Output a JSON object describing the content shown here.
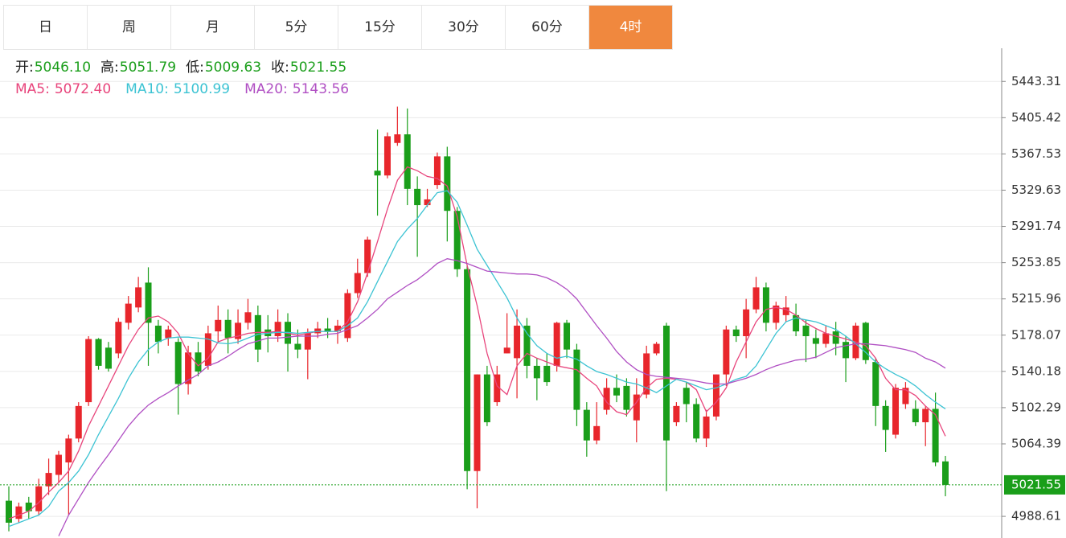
{
  "tabs": [
    "日",
    "周",
    "月",
    "5分",
    "15分",
    "30分",
    "60分",
    "4时"
  ],
  "active_tab": 7,
  "chart_data": {
    "type": "candlestick",
    "up_color": "#e8262c",
    "down_color": "#1a9e1a",
    "ylim": [
      4966,
      5478
    ],
    "yticks": [
      4988.61,
      5064.39,
      5102.29,
      5140.18,
      5178.07,
      5215.96,
      5253.85,
      5291.74,
      5329.63,
      5367.53,
      5405.42,
      5443.31
    ],
    "grid": true,
    "ohlc_header": [
      {
        "label": "开:",
        "value": "5046.10"
      },
      {
        "label": "高:",
        "value": "5051.79"
      },
      {
        "label": "低:",
        "value": "5009.63"
      },
      {
        "label": "收:",
        "value": "5021.55"
      }
    ],
    "open": [
      5005,
      4986,
      5003,
      4994,
      5020,
      5032,
      5045,
      5070,
      5108,
      5174,
      5165,
      5159,
      5191,
      5207,
      5233,
      5188,
      5175,
      5171,
      5127,
      5160,
      5146,
      5182,
      5194,
      5174,
      5191,
      5199,
      5184,
      5177,
      5192,
      5169,
      5163,
      5180,
      5185,
      5182,
      5175,
      5222,
      5243,
      5350,
      5345,
      5379,
      5388,
      5331,
      5314,
      5335,
      5365,
      5308,
      5247,
      5036,
      5137,
      5108,
      5159,
      5154,
      5188,
      5146,
      5146,
      5146,
      5191,
      5163,
      5100,
      5068,
      5100,
      5123,
      5125,
      5089,
      5116,
      5159,
      5188,
      5087,
      5123,
      5106,
      5070,
      5093,
      5137,
      5184,
      5177,
      5205,
      5228,
      5191,
      5199,
      5199,
      5188,
      5175,
      5169,
      5182,
      5171,
      5154,
      5191,
      5150,
      5104,
      5074,
      5106,
      5101,
      5087,
      5101,
      5046.1
    ],
    "high": [
      5020,
      5003,
      5009,
      5028,
      5049,
      5057,
      5074,
      5108,
      5177,
      5175,
      5171,
      5196,
      5219,
      5239,
      5249,
      5194,
      5188,
      5175,
      5167,
      5171,
      5188,
      5209,
      5205,
      5205,
      5216,
      5209,
      5199,
      5205,
      5201,
      5184,
      5185,
      5192,
      5196,
      5194,
      5226,
      5258,
      5281,
      5393,
      5390,
      5417,
      5415,
      5344,
      5331,
      5369,
      5375,
      5312,
      5251,
      5137,
      5146,
      5146,
      5201,
      5205,
      5196,
      5154,
      5159,
      5192,
      5194,
      5169,
      5108,
      5108,
      5133,
      5137,
      5133,
      5133,
      5167,
      5171,
      5191,
      5108,
      5129,
      5112,
      5100,
      5137,
      5188,
      5188,
      5216,
      5239,
      5233,
      5213,
      5219,
      5211,
      5194,
      5184,
      5188,
      5192,
      5177,
      5191,
      5192,
      5154,
      5110,
      5127,
      5129,
      5110,
      5104,
      5118,
      5051.79
    ],
    "low": [
      4973,
      4982,
      4986,
      4990,
      5011,
      5024,
      4990,
      5066,
      5104,
      5142,
      5140,
      5154,
      5184,
      5202,
      5146,
      5159,
      5167,
      5095,
      5116,
      5135,
      5142,
      5171,
      5159,
      5169,
      5184,
      5150,
      5160,
      5171,
      5140,
      5154,
      5132,
      5175,
      5175,
      5169,
      5171,
      5217,
      5239,
      5303,
      5342,
      5376,
      5314,
      5260,
      5312,
      5331,
      5276,
      5239,
      5017,
      4997,
      5083,
      5104,
      5159,
      5112,
      5133,
      5110,
      5125,
      5140,
      5154,
      5083,
      5051,
      5064,
      5095,
      5108,
      5093,
      5066,
      5112,
      5157,
      5015,
      5083,
      5087,
      5066,
      5061,
      5089,
      5125,
      5171,
      5154,
      5201,
      5182,
      5184,
      5192,
      5177,
      5150,
      5154,
      5165,
      5157,
      5129,
      5152,
      5148,
      5083,
      5056,
      5070,
      5101,
      5083,
      5062,
      5041,
      5009.63
    ],
    "close": [
      4982,
      4999,
      4994,
      5020,
      5034,
      5053,
      5070,
      5104,
      5174,
      5146,
      5143,
      5192,
      5211,
      5228,
      5191,
      5171,
      5184,
      5127,
      5160,
      5140,
      5180,
      5194,
      5175,
      5191,
      5202,
      5163,
      5177,
      5192,
      5169,
      5163,
      5180,
      5185,
      5182,
      5188,
      5222,
      5243,
      5278,
      5345,
      5386,
      5388,
      5331,
      5314,
      5320,
      5365,
      5308,
      5247,
      5036,
      5137,
      5087,
      5137,
      5165,
      5188,
      5146,
      5133,
      5129,
      5191,
      5163,
      5100,
      5068,
      5083,
      5123,
      5115,
      5100,
      5116,
      5159,
      5169,
      5068,
      5104,
      5106,
      5070,
      5093,
      5137,
      5184,
      5177,
      5205,
      5228,
      5191,
      5209,
      5207,
      5182,
      5177,
      5169,
      5180,
      5169,
      5154,
      5188,
      5152,
      5104,
      5079,
      5123,
      5123,
      5087,
      5101,
      5045,
      5021.55
    ],
    "series": [
      {
        "name": "MA5:",
        "color": "#e8457c",
        "legend_value": "5072.40",
        "values": [
          4986,
          4990,
          4994,
          5003,
          5014,
          5024,
          5036,
          5057,
          5083,
          5104,
          5125,
          5146,
          5167,
          5184,
          5196,
          5198,
          5192,
          5180,
          5159,
          5146,
          5154,
          5171,
          5175,
          5177,
          5180,
          5181,
          5181,
          5182,
          5180,
          5178,
          5180,
          5182,
          5182,
          5182,
          5192,
          5213,
          5243,
          5276,
          5310,
          5340,
          5354,
          5350,
          5344,
          5342,
          5334,
          5302,
          5251,
          5209,
          5159,
          5125,
          5116,
          5146,
          5159,
          5154,
          5150,
          5146,
          5144,
          5142,
          5133,
          5125,
          5108,
          5098,
          5095,
          5108,
          5123,
          5132,
          5133,
          5132,
          5129,
          5121,
          5098,
          5108,
          5123,
          5150,
          5171,
          5192,
          5205,
          5207,
          5205,
          5199,
          5191,
          5185,
          5180,
          5177,
          5174,
          5171,
          5167,
          5154,
          5133,
          5121,
          5121,
          5115,
          5104,
          5095,
          5072.4
        ]
      },
      {
        "name": "MA10:",
        "color": "#3cc3d3",
        "legend_value": "5100.99",
        "values": [
          4978,
          4982,
          4986,
          4990,
          4999,
          5015,
          5024,
          5036,
          5053,
          5074,
          5093,
          5112,
          5133,
          5150,
          5163,
          5171,
          5175,
          5176,
          5176,
          5175,
          5174,
          5170,
          5169,
          5171,
          5175,
          5179,
          5180,
          5181,
          5181,
          5180,
          5181,
          5182,
          5182,
          5182,
          5188,
          5196,
          5213,
          5234,
          5255,
          5276,
          5289,
          5300,
          5314,
          5327,
          5329,
          5317,
          5293,
          5268,
          5251,
          5234,
          5217,
          5196,
          5180,
          5167,
          5159,
          5154,
          5156,
          5153,
          5146,
          5140,
          5137,
          5133,
          5129,
          5127,
          5123,
          5118,
          5125,
          5132,
          5129,
          5125,
          5121,
          5123,
          5127,
          5132,
          5135,
          5146,
          5163,
          5180,
          5192,
          5196,
          5194,
          5192,
          5188,
          5184,
          5177,
          5169,
          5160,
          5150,
          5143,
          5137,
          5132,
          5125,
          5116,
          5108,
          5100.99
        ]
      },
      {
        "name": "MA20:",
        "color": "#b04fc3",
        "legend_value": "5143.56",
        "values": [
          null,
          null,
          null,
          null,
          null,
          4968,
          4990,
          5007,
          5024,
          5039,
          5053,
          5068,
          5083,
          5095,
          5105,
          5112,
          5118,
          5125,
          5131,
          5137,
          5146,
          5150,
          5156,
          5163,
          5169,
          5172,
          5175,
          5175,
          5176,
          5177,
          5177,
          5177,
          5179,
          5180,
          5184,
          5188,
          5196,
          5205,
          5216,
          5223,
          5230,
          5236,
          5244,
          5253,
          5258,
          5256,
          5253,
          5249,
          5245,
          5244,
          5243,
          5242,
          5242,
          5241,
          5238,
          5233,
          5226,
          5216,
          5202,
          5188,
          5175,
          5161,
          5150,
          5142,
          5137,
          5135,
          5134,
          5133,
          5132,
          5130,
          5128,
          5127,
          5127,
          5130,
          5133,
          5137,
          5142,
          5146,
          5149,
          5152,
          5153,
          5155,
          5160,
          5165,
          5167,
          5169,
          5169,
          5168,
          5167,
          5165,
          5163,
          5160,
          5154,
          5150,
          5143.56
        ]
      }
    ]
  }
}
